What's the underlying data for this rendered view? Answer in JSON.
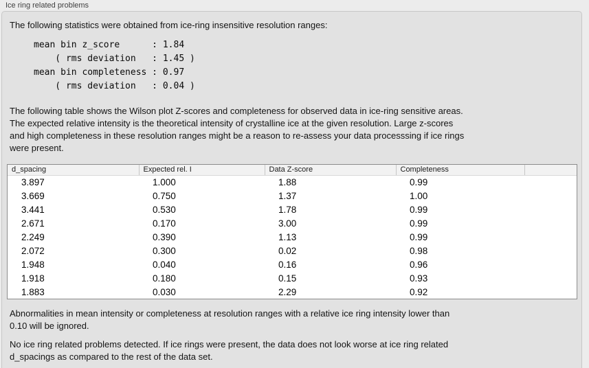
{
  "panel": {
    "title": "Ice ring related problems"
  },
  "stats": {
    "intro": "The following statistics were obtained from ice-ring insensitive resolution ranges:",
    "block": "mean bin z_score      : 1.84\n    ( rms deviation   : 1.45 )\nmean bin completeness : 0.97\n    ( rms deviation   : 0.04 )",
    "mean_bin_z_score": "1.84",
    "z_score_rms_deviation": "1.45",
    "mean_bin_completeness": "0.97",
    "completeness_rms_deviation": "0.04"
  },
  "table_intro": "The following table shows the Wilson plot Z-scores and completeness for observed data in ice-ring sensitive areas.\nThe expected relative intensity is the theoretical intensity of crystalline ice at the given resolution. Large z-scores\nand high completeness in these resolution ranges might be a reason to re-assess your data processsing if ice rings\nwere present.",
  "table": {
    "columns": [
      "d_spacing",
      "Expected rel. I",
      "Data Z-score",
      "Completeness"
    ],
    "rows": [
      [
        "3.897",
        "1.000",
        "1.88",
        "0.99"
      ],
      [
        "3.669",
        "0.750",
        "1.37",
        "1.00"
      ],
      [
        "3.441",
        "0.530",
        "1.78",
        "0.99"
      ],
      [
        "2.671",
        "0.170",
        "3.00",
        "0.99"
      ],
      [
        "2.249",
        "0.390",
        "1.13",
        "0.99"
      ],
      [
        "2.072",
        "0.300",
        "0.02",
        "0.98"
      ],
      [
        "1.948",
        "0.040",
        "0.16",
        "0.96"
      ],
      [
        "1.918",
        "0.180",
        "0.15",
        "0.93"
      ],
      [
        "1.883",
        "0.030",
        "2.29",
        "0.92"
      ]
    ]
  },
  "notes": {
    "ignore_rule": "Abnormalities in mean intensity or completeness at resolution ranges with a relative ice ring intensity lower than\n0.10 will be ignored.",
    "conclusion": "No ice ring related problems detected. If ice rings were present, the data does not look worse at ice ring related\nd_spacings as compared to the rest of the data set."
  },
  "colors": {
    "page_background": "#ececec",
    "panel_background": "#e2e2e2",
    "panel_border": "#c7c7c7",
    "table_background": "#ffffff",
    "table_border": "#8c8c8c",
    "header_background": "#f2f2f2"
  }
}
